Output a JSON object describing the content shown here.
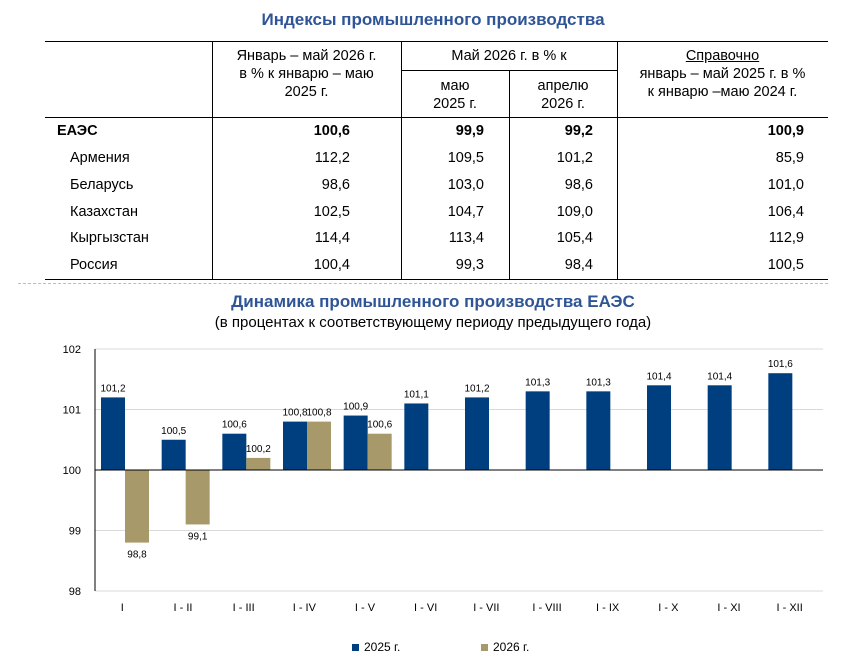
{
  "table": {
    "title": "Индексы промышленного производства",
    "headers": {
      "col1": [
        "Январь – май 2026 г.",
        "в % к январю – маю",
        "2025 г."
      ],
      "col_group": "Май 2026 г. в % к",
      "col2": [
        "маю",
        "2025 г."
      ],
      "col3": [
        "апрелю",
        "2026 г."
      ],
      "col4_title": "Справочно",
      "col4": [
        "январь – май 2025 г. в %",
        "к январю –маю 2024 г."
      ]
    },
    "rows": [
      {
        "name": "ЕАЭС",
        "c1": "100,6",
        "c2": "99,9",
        "c3": "99,2",
        "c4": "100,9"
      },
      {
        "name": "Армения",
        "c1": "112,2",
        "c2": "109,5",
        "c3": "101,2",
        "c4": "85,9"
      },
      {
        "name": "Беларусь",
        "c1": "98,6",
        "c2": "103,0",
        "c3": "98,6",
        "c4": "101,0"
      },
      {
        "name": "Казахстан",
        "c1": "102,5",
        "c2": "104,7",
        "c3": "109,0",
        "c4": "106,4"
      },
      {
        "name": "Кыргызстан",
        "c1": "114,4",
        "c2": "113,4",
        "c3": "105,4",
        "c4": "112,9"
      },
      {
        "name": "Россия",
        "c1": "100,4",
        "c2": "99,3",
        "c3": "98,4",
        "c4": "100,5"
      }
    ]
  },
  "chart_data": {
    "type": "bar",
    "title": "Динамика промышленного производства ЕАЭС",
    "subtitle": "(в процентах к соответствующему периоду предыдущего года)",
    "categories": [
      "I",
      "I - II",
      "I - III",
      "I - IV",
      "I - V",
      "I - VI",
      "I - VII",
      "I - VIII",
      "I - IX",
      "I - X",
      "I - XI",
      "I - XII"
    ],
    "baseline": 100,
    "ylim": [
      98,
      102
    ],
    "yticks": [
      98,
      99,
      100,
      101,
      102
    ],
    "grid": true,
    "legend_position": "bottom",
    "series": [
      {
        "name": "2025 г.",
        "color": "#003f7f",
        "values": [
          101.2,
          100.5,
          100.6,
          100.8,
          100.9,
          101.1,
          101.2,
          101.3,
          101.3,
          101.4,
          101.4,
          101.6
        ],
        "labels": [
          "101,2",
          "100,5",
          "100,6",
          "100,8",
          "100,9",
          "101,1",
          "101,2",
          "101,3",
          "101,3",
          "101,4",
          "101,4",
          "101,6"
        ]
      },
      {
        "name": "2026 г.",
        "color": "#a8996a",
        "values": [
          98.8,
          99.1,
          100.2,
          100.8,
          100.6,
          null,
          null,
          null,
          null,
          null,
          null,
          null
        ],
        "labels": [
          "98,8",
          "99,1",
          "100,2",
          "100,8",
          "100,6",
          null,
          null,
          null,
          null,
          null,
          null,
          null
        ]
      }
    ]
  }
}
